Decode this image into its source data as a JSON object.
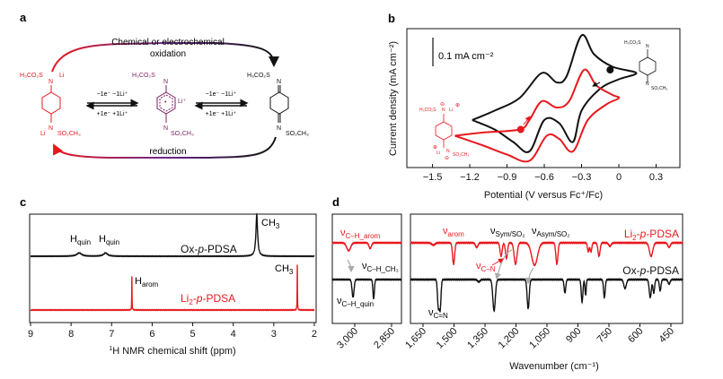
{
  "colors": {
    "red": "#e8191e",
    "black": "#111111",
    "purple": "#7a1f5c",
    "blue_band": "#9fb6d8",
    "orange_band": "#f4c9a8"
  },
  "panel_a": {
    "label": "a",
    "top_arrow_line1": "Chemical or electrochemical",
    "top_arrow_line2": "oxidation",
    "bottom_arrow": "reduction",
    "step1_forward": "−1e⁻  −1Li⁺",
    "step1_back": "+1e⁻  +1Li⁺",
    "step2_forward": "−1e⁻  −1Li⁺",
    "step2_back": "+1e⁻  +1Li⁺",
    "mol_reduced": {
      "top": "H₃CO₂S",
      "top_li": "Li",
      "bottom": "SO₂CH₃",
      "bottom_li": "Li",
      "n": "N"
    },
    "mol_radical": {
      "top": "H₃CO₂S",
      "bottom": "SO₂CH₃",
      "li": "Li⁺",
      "charge": "•",
      "n": "N"
    },
    "mol_oxidized": {
      "top": "H₃CO₂S",
      "bottom": "SO₂CH₃",
      "n": "N"
    }
  },
  "chart_data": [
    {
      "panel": "b",
      "type": "line",
      "ylabel": "Current density (mA cm⁻²)",
      "xlabel": "Potential (V versus Fc⁺/Fc)",
      "xticks": [
        "−1.5",
        "−1.2",
        "−0.9",
        "−0.6",
        "−0.3",
        "0",
        "0.3"
      ],
      "xtick_values": [
        -1.5,
        -1.2,
        -0.9,
        -0.6,
        -0.3,
        0,
        0.3
      ],
      "xlim": [
        -1.72,
        0.48
      ],
      "scale_bar": "0.1 mA cm⁻²",
      "scale_bar_value": 0.1,
      "series": [
        {
          "color": "black",
          "start_marker": [
            -0.07,
            0.12
          ],
          "points": [
            [
              -1.18,
              -0.04
            ],
            [
              -1.0,
              -0.01
            ],
            [
              -0.8,
              0.03
            ],
            [
              -0.62,
              0.11
            ],
            [
              -0.5,
              0.08
            ],
            [
              -0.42,
              0.1
            ],
            [
              -0.3,
              0.23
            ],
            [
              -0.2,
              0.17
            ],
            [
              -0.05,
              0.13
            ],
            [
              0.14,
              0.11
            ],
            [
              0.0,
              0.09
            ],
            [
              -0.15,
              0.06
            ],
            [
              -0.3,
              -0.01
            ],
            [
              -0.37,
              -0.11
            ],
            [
              -0.48,
              -0.05
            ],
            [
              -0.6,
              -0.04
            ],
            [
              -0.72,
              -0.14
            ],
            [
              -0.85,
              -0.11
            ],
            [
              -1.0,
              -0.07
            ],
            [
              -1.18,
              -0.04
            ]
          ]
        },
        {
          "color": "red",
          "start_marker": [
            -0.79,
            -0.07
          ],
          "points": [
            [
              -1.32,
              -0.09
            ],
            [
              -1.1,
              -0.08
            ],
            [
              -0.8,
              -0.07
            ],
            [
              -0.72,
              -0.04
            ],
            [
              -0.62,
              0.02
            ],
            [
              -0.5,
              0.0
            ],
            [
              -0.4,
              0.02
            ],
            [
              -0.28,
              0.12
            ],
            [
              -0.18,
              0.07
            ],
            [
              -0.05,
              0.04
            ],
            [
              0.0,
              0.03
            ],
            [
              -0.1,
              0.01
            ],
            [
              -0.25,
              -0.04
            ],
            [
              -0.37,
              -0.14
            ],
            [
              -0.48,
              -0.1
            ],
            [
              -0.58,
              -0.09
            ],
            [
              -0.72,
              -0.17
            ],
            [
              -0.9,
              -0.15
            ],
            [
              -1.1,
              -0.12
            ],
            [
              -1.32,
              -0.09
            ]
          ]
        }
      ],
      "insets": {
        "oxidized": {
          "top": "H₃CO₂S",
          "bottom": "SO₂CH₃",
          "n": "N"
        },
        "reduced": {
          "top": "H₃CO₂S",
          "bottom": "SO₂CH₃",
          "n": "N",
          "li": "Li",
          "plus": "⊕",
          "minus": "⊖"
        }
      }
    },
    {
      "panel": "c",
      "type": "line",
      "xlabel_sup": "1",
      "xlabel": "H NMR chemical shift (ppm)",
      "xticks": [
        "9",
        "8",
        "7",
        "6",
        "5",
        "4",
        "3",
        "2"
      ],
      "xtick_values": [
        9,
        8,
        7,
        6,
        5,
        4,
        3,
        2
      ],
      "xlim": [
        9,
        2
      ],
      "series": [
        {
          "name": "Ox-p-PDSA",
          "name_parts": [
            "Ox-",
            "p",
            "-PDSA"
          ],
          "color": "black",
          "peaks": [
            [
              7.8,
              0.08,
              0.07
            ],
            [
              7.15,
              0.08,
              0.06
            ],
            [
              3.42,
              1.0,
              0.025
            ]
          ]
        },
        {
          "name": "Li2-p-PDSA",
          "name_parts": [
            "Li",
            "2",
            "-",
            "p",
            "-PDSA"
          ],
          "color": "red",
          "peaks": [
            [
              6.5,
              0.73,
              0.004
            ],
            [
              2.42,
              1.0,
              0.004
            ]
          ]
        }
      ],
      "annotations": [
        {
          "base": "H",
          "sub": "quin"
        },
        {
          "base": "H",
          "sub": "quin"
        },
        {
          "base": "CH",
          "sub": "3"
        },
        {
          "base": "H",
          "sub": "arom"
        },
        {
          "base": "CH",
          "sub": "3"
        }
      ]
    },
    {
      "panel": "d",
      "type": "line",
      "xlabel": "Wavenumber (cm⁻¹)",
      "left_xticks": [
        "3,000",
        "2,850"
      ],
      "left_xtick_values": [
        3000,
        2850
      ],
      "left_xlim": [
        3092,
        2810
      ],
      "right_xticks": [
        "1,650",
        "1,500",
        "1,350",
        "1,200",
        "1,050",
        "900",
        "750",
        "600",
        "450"
      ],
      "right_xtick_values": [
        1650,
        1500,
        1350,
        1200,
        1050,
        900,
        750,
        600,
        450
      ],
      "right_xlim": [
        1711,
        393
      ],
      "series": [
        {
          "name": "Li2-p-PDSA",
          "name_parts": [
            "Li",
            "2",
            "-",
            "p",
            "-PDSA"
          ],
          "color": "red",
          "left_peaks": [
            [
              3025,
              0.35,
              8
            ],
            [
              2937,
              0.25,
              5
            ]
          ],
          "right_peaks": [
            [
              1600,
              0.1,
              8
            ],
            [
              1502,
              0.95,
              5
            ],
            [
              1390,
              0.2,
              6
            ],
            [
              1272,
              0.6,
              5
            ],
            [
              1246,
              0.7,
              5
            ],
            [
              1202,
              0.95,
              7
            ],
            [
              1110,
              1.0,
              14
            ],
            [
              1002,
              0.95,
              5
            ],
            [
              850,
              0.4,
              4
            ],
            [
              837,
              0.4,
              4
            ],
            [
              798,
              0.6,
              5
            ],
            [
              745,
              0.15,
              6
            ],
            [
              546,
              0.6,
              8
            ],
            [
              459,
              0.2,
              6
            ]
          ]
        },
        {
          "name": "Ox-p-PDSA",
          "name_parts": [
            "Ox-",
            "p",
            "-PDSA"
          ],
          "color": "black",
          "left_peaks": [
            [
              3007,
              0.8,
              4
            ],
            [
              2923,
              0.85,
              3
            ]
          ],
          "right_peaks": [
            [
              1576,
              1.2,
              4
            ],
            [
              1567,
              1.3,
              4
            ],
            [
              1380,
              0.1,
              6
            ],
            [
              1306,
              1.4,
              6
            ],
            [
              1141,
              1.3,
              5
            ],
            [
              963,
              0.6,
              4
            ],
            [
              880,
              1.0,
              4
            ],
            [
              863,
              0.7,
              3
            ],
            [
              772,
              0.8,
              4
            ],
            [
              672,
              0.4,
              6
            ],
            [
              550,
              0.8,
              5
            ],
            [
              533,
              0.6,
              4
            ],
            [
              502,
              0.5,
              4
            ],
            [
              459,
              0.2,
              5
            ]
          ]
        }
      ],
      "highlights": [
        {
          "color": "blue",
          "red_range": [
            1190,
            1215
          ],
          "black_range": [
            1292,
            1318
          ]
        },
        {
          "color": "orange",
          "red_range": [
            1090,
            1128
          ],
          "black_range": [
            1124,
            1158
          ]
        }
      ],
      "annotations": {
        "ch_arom": {
          "base": "ν",
          "sub": "C–H_arom"
        },
        "ch_ch3": {
          "base": "ν",
          "sub": "C–H_CH₃"
        },
        "ch_quin": {
          "base": "ν",
          "sub": "C–H_quin"
        },
        "arom": {
          "base": "ν",
          "sub": "arom"
        },
        "sym": {
          "base": "ν",
          "sub": "Sym/SO₂"
        },
        "asym": {
          "base": "ν",
          "sub": "Asym/SO₂"
        },
        "cn": {
          "base": "ν",
          "sub": "C–N"
        },
        "c_eq_n": {
          "base": "ν",
          "sub": "C=N"
        }
      }
    }
  ],
  "panel_labels": {
    "b": "b",
    "c": "c",
    "d": "d"
  }
}
